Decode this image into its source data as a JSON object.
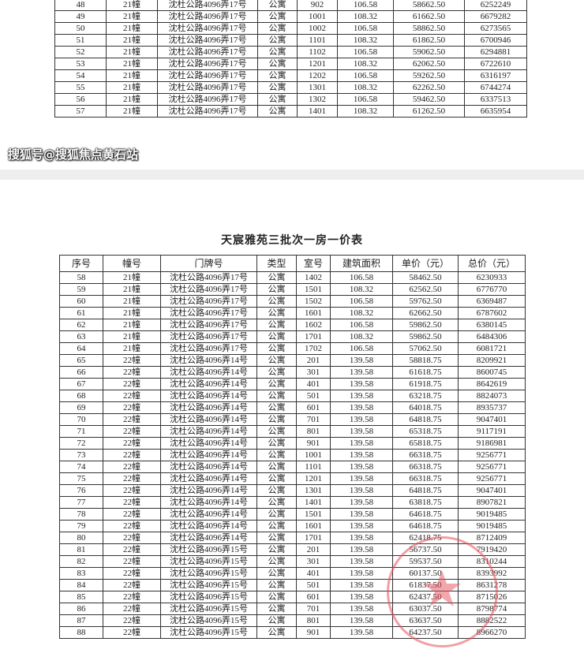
{
  "page1": {
    "rows": [
      [
        "48",
        "21幢",
        "沈杜公路4096弄17号",
        "公寓",
        "902",
        "106.58",
        "58662.50",
        "6252249"
      ],
      [
        "49",
        "21幢",
        "沈杜公路4096弄17号",
        "公寓",
        "1001",
        "108.32",
        "61662.50",
        "6679282"
      ],
      [
        "50",
        "21幢",
        "沈杜公路4096弄17号",
        "公寓",
        "1002",
        "106.58",
        "58862.50",
        "6273565"
      ],
      [
        "51",
        "21幢",
        "沈杜公路4096弄17号",
        "公寓",
        "1101",
        "108.32",
        "61862.50",
        "6700946"
      ],
      [
        "52",
        "21幢",
        "沈杜公路4096弄17号",
        "公寓",
        "1102",
        "106.58",
        "59062.50",
        "6294881"
      ],
      [
        "53",
        "21幢",
        "沈杜公路4096弄17号",
        "公寓",
        "1201",
        "108.32",
        "62062.50",
        "6722610"
      ],
      [
        "54",
        "21幢",
        "沈杜公路4096弄17号",
        "公寓",
        "1202",
        "106.58",
        "59262.50",
        "6316197"
      ],
      [
        "55",
        "21幢",
        "沈杜公路4096弄17号",
        "公寓",
        "1301",
        "108.32",
        "62262.50",
        "6744274"
      ],
      [
        "56",
        "21幢",
        "沈杜公路4096弄17号",
        "公寓",
        "1302",
        "106.58",
        "59462.50",
        "6337513"
      ],
      [
        "57",
        "21幢",
        "沈杜公路4096弄17号",
        "公寓",
        "1401",
        "108.32",
        "61262.50",
        "6635954"
      ]
    ]
  },
  "page2": {
    "title": "天宸雅苑三批次一房一价表",
    "headers": [
      "序号",
      "幢号",
      "门牌号",
      "类型",
      "室号",
      "建筑面积",
      "单价（元）",
      "总价（元）"
    ],
    "rows": [
      [
        "58",
        "21幢",
        "沈杜公路4096弄17号",
        "公寓",
        "1402",
        "106.58",
        "58462.50",
        "6230933"
      ],
      [
        "59",
        "21幢",
        "沈杜公路4096弄17号",
        "公寓",
        "1501",
        "108.32",
        "62562.50",
        "6776770"
      ],
      [
        "60",
        "21幢",
        "沈杜公路4096弄17号",
        "公寓",
        "1502",
        "106.58",
        "59762.50",
        "6369487"
      ],
      [
        "61",
        "21幢",
        "沈杜公路4096弄17号",
        "公寓",
        "1601",
        "108.32",
        "62662.50",
        "6787602"
      ],
      [
        "62",
        "21幢",
        "沈杜公路4096弄17号",
        "公寓",
        "1602",
        "106.58",
        "59862.50",
        "6380145"
      ],
      [
        "63",
        "21幢",
        "沈杜公路4096弄17号",
        "公寓",
        "1701",
        "108.32",
        "59862.50",
        "6484306"
      ],
      [
        "64",
        "21幢",
        "沈杜公路4096弄17号",
        "公寓",
        "1702",
        "106.58",
        "57062.50",
        "6081721"
      ],
      [
        "65",
        "22幢",
        "沈杜公路4096弄14号",
        "公寓",
        "201",
        "139.58",
        "58818.75",
        "8209921"
      ],
      [
        "66",
        "22幢",
        "沈杜公路4096弄14号",
        "公寓",
        "301",
        "139.58",
        "61618.75",
        "8600745"
      ],
      [
        "67",
        "22幢",
        "沈杜公路4096弄14号",
        "公寓",
        "401",
        "139.58",
        "61918.75",
        "8642619"
      ],
      [
        "68",
        "22幢",
        "沈杜公路4096弄14号",
        "公寓",
        "501",
        "139.58",
        "63218.75",
        "8824073"
      ],
      [
        "69",
        "22幢",
        "沈杜公路4096弄14号",
        "公寓",
        "601",
        "139.58",
        "64018.75",
        "8935737"
      ],
      [
        "70",
        "22幢",
        "沈杜公路4096弄14号",
        "公寓",
        "701",
        "139.58",
        "64818.75",
        "9047401"
      ],
      [
        "71",
        "22幢",
        "沈杜公路4096弄14号",
        "公寓",
        "801",
        "139.58",
        "65318.75",
        "9117191"
      ],
      [
        "72",
        "22幢",
        "沈杜公路4096弄14号",
        "公寓",
        "901",
        "139.58",
        "65818.75",
        "9186981"
      ],
      [
        "73",
        "22幢",
        "沈杜公路4096弄14号",
        "公寓",
        "1001",
        "139.58",
        "66318.75",
        "9256771"
      ],
      [
        "74",
        "22幢",
        "沈杜公路4096弄14号",
        "公寓",
        "1101",
        "139.58",
        "66318.75",
        "9256771"
      ],
      [
        "75",
        "22幢",
        "沈杜公路4096弄14号",
        "公寓",
        "1201",
        "139.58",
        "66318.75",
        "9256771"
      ],
      [
        "76",
        "22幢",
        "沈杜公路4096弄14号",
        "公寓",
        "1301",
        "139.58",
        "64818.75",
        "9047401"
      ],
      [
        "77",
        "22幢",
        "沈杜公路4096弄14号",
        "公寓",
        "1401",
        "139.58",
        "63818.75",
        "8907821"
      ],
      [
        "78",
        "22幢",
        "沈杜公路4096弄14号",
        "公寓",
        "1501",
        "139.58",
        "64618.75",
        "9019485"
      ],
      [
        "79",
        "22幢",
        "沈杜公路4096弄14号",
        "公寓",
        "1601",
        "139.58",
        "64618.75",
        "9019485"
      ],
      [
        "80",
        "22幢",
        "沈杜公路4096弄14号",
        "公寓",
        "1701",
        "139.58",
        "62418.75",
        "8712409"
      ],
      [
        "81",
        "22幢",
        "沈杜公路4096弄15号",
        "公寓",
        "201",
        "139.58",
        "56737.50",
        "7919420"
      ],
      [
        "82",
        "22幢",
        "沈杜公路4096弄15号",
        "公寓",
        "301",
        "139.58",
        "59537.50",
        "8310244"
      ],
      [
        "83",
        "22幢",
        "沈杜公路4096弄15号",
        "公寓",
        "401",
        "139.58",
        "60137.50",
        "8393992"
      ],
      [
        "84",
        "22幢",
        "沈杜公路4096弄15号",
        "公寓",
        "501",
        "139.58",
        "61837.50",
        "8631278"
      ],
      [
        "85",
        "22幢",
        "沈杜公路4096弄15号",
        "公寓",
        "601",
        "139.58",
        "62437.50",
        "8715026"
      ],
      [
        "86",
        "22幢",
        "沈杜公路4096弄15号",
        "公寓",
        "701",
        "139.58",
        "63037.50",
        "8798774"
      ],
      [
        "87",
        "22幢",
        "沈杜公路4096弄15号",
        "公寓",
        "801",
        "139.58",
        "63637.50",
        "8882522"
      ],
      [
        "88",
        "22幢",
        "沈杜公路4096弄15号",
        "公寓",
        "901",
        "139.58",
        "64237.50",
        "8966270"
      ]
    ]
  },
  "watermark": "搜狐号@搜狐焦点黄石站",
  "colors": {
    "stamp": "#e6505a"
  }
}
